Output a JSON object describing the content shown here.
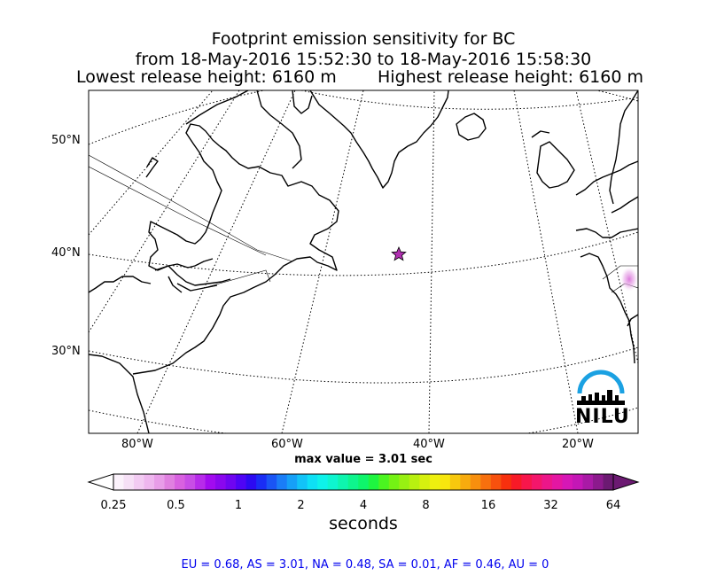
{
  "title": {
    "line1": "Footprint emission sensitivity for BC",
    "line2": "from 18-May-2016 15:52:30 to 18-May-2016 15:58:30",
    "lowest": "Lowest release height: 6160 m",
    "highest": "Highest release height: 6160 m"
  },
  "lat_labels": [
    "50°N",
    "40°N",
    "30°N"
  ],
  "lon_labels": [
    "80°W",
    "60°W",
    "40°W",
    "20°W"
  ],
  "release_point": {
    "lat": 40.1,
    "lon": -44.3,
    "marker": "star"
  },
  "logo": {
    "text": "NILU",
    "arc_color": "#1ba1e2"
  },
  "max_value_text": "max value = 3.01 sec",
  "colorbar": {
    "ticks": [
      "0.25",
      "0.5",
      "1",
      "2",
      "4",
      "8",
      "16",
      "32",
      "64"
    ],
    "label": "seconds",
    "colors": [
      "#fbf2fb",
      "#f6e0f6",
      "#f2cbf2",
      "#eeb6ee",
      "#e89de8",
      "#e080e0",
      "#d861e0",
      "#c84de6",
      "#b72bea",
      "#a20bef",
      "#8a07ee",
      "#6f05f0",
      "#4f04f5",
      "#2c0af2",
      "#1a2df5",
      "#1a55f5",
      "#1a7df7",
      "#16a0f7",
      "#12c3f7",
      "#0ee0f5",
      "#0ef2ea",
      "#0ef5cf",
      "#0ef5ae",
      "#0ef58d",
      "#0ef56b",
      "#1ef540",
      "#4bf520",
      "#74f214",
      "#98f012",
      "#b8f010",
      "#d6f00f",
      "#eef00f",
      "#f7e60e",
      "#f7c80e",
      "#f7ab0e",
      "#f78f0e",
      "#f7700e",
      "#f7510e",
      "#f7300e",
      "#f71a27",
      "#f7164b",
      "#f3166b",
      "#ec1689",
      "#e416a2",
      "#d617b6",
      "#c417b6",
      "#a91aa6",
      "#8c1a8d",
      "#6c1a72"
    ]
  },
  "region_summary": "EU = 0.68,  AS = 3.01,  NA = 0.48,  SA = 0.01,  AF = 0.46,  AU = 0"
}
